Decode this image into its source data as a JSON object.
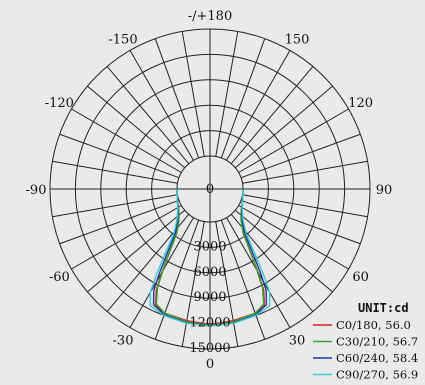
{
  "chart_data": {
    "type": "polar",
    "unit_label": "UNIT:cd",
    "radial_ticks": [
      0,
      3000,
      6000,
      9000,
      12000,
      15000
    ],
    "radial_tick_labels": [
      "0",
      "3000",
      "6000",
      "9000",
      "12000",
      "15000"
    ],
    "angle_labels": [
      {
        "angle": 180,
        "text": "-/+180"
      },
      {
        "angle": -150,
        "text": "-150"
      },
      {
        "angle": 150,
        "text": "150"
      },
      {
        "angle": -120,
        "text": "-120"
      },
      {
        "angle": 120,
        "text": "120"
      },
      {
        "angle": -90,
        "text": "-90"
      },
      {
        "angle": 90,
        "text": "90"
      },
      {
        "angle": -60,
        "text": "-60"
      },
      {
        "angle": 60,
        "text": "60"
      },
      {
        "angle": -30,
        "text": "-30"
      },
      {
        "angle": 30,
        "text": "30"
      },
      {
        "angle": 0,
        "text": "0"
      }
    ],
    "series": [
      {
        "name": "C0/180, 56.0",
        "color": "#d42020",
        "values": [
          [
            0,
            12100
          ],
          [
            10,
            11900
          ],
          [
            20,
            11700
          ],
          [
            25,
            11300
          ],
          [
            28,
            9600
          ],
          [
            30,
            7400
          ],
          [
            33,
            4800
          ],
          [
            37,
            2700
          ],
          [
            45,
            1300
          ],
          [
            55,
            600
          ],
          [
            70,
            200
          ],
          [
            90,
            0
          ]
        ]
      },
      {
        "name": "C30/210, 56.7",
        "color": "#3aa030",
        "values": [
          [
            0,
            12200
          ],
          [
            10,
            12000
          ],
          [
            20,
            11700
          ],
          [
            25,
            11100
          ],
          [
            28,
            9300
          ],
          [
            30,
            7200
          ],
          [
            33,
            4700
          ],
          [
            37,
            2600
          ],
          [
            45,
            1300
          ],
          [
            55,
            600
          ],
          [
            70,
            200
          ],
          [
            90,
            0
          ]
        ]
      },
      {
        "name": "C60/240, 58.4",
        "color": "#1a3aa0",
        "values": [
          [
            0,
            12300
          ],
          [
            10,
            12150
          ],
          [
            20,
            11900
          ],
          [
            26,
            11300
          ],
          [
            29,
            9800
          ],
          [
            31,
            7700
          ],
          [
            34,
            5000
          ],
          [
            38,
            2800
          ],
          [
            46,
            1400
          ],
          [
            56,
            650
          ],
          [
            70,
            200
          ],
          [
            90,
            0
          ]
        ]
      },
      {
        "name": "C90/270, 56.9",
        "color": "#40c8d0",
        "values": [
          [
            0,
            12300
          ],
          [
            10,
            12200
          ],
          [
            20,
            12000
          ],
          [
            27,
            11600
          ],
          [
            30,
            10200
          ],
          [
            32,
            8000
          ],
          [
            35,
            5200
          ],
          [
            39,
            2900
          ],
          [
            47,
            1450
          ],
          [
            57,
            650
          ],
          [
            70,
            200
          ],
          [
            90,
            0
          ]
        ]
      }
    ]
  }
}
